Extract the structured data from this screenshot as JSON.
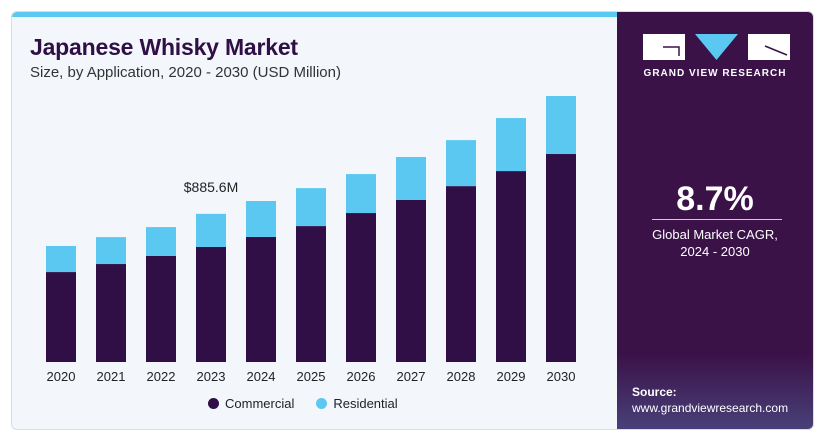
{
  "header": {
    "title": "Japanese Whisky Market",
    "subtitle": "Size, by Application, 2020 - 2030 (USD Million)"
  },
  "panel": {
    "brand": "GRAND VIEW RESEARCH",
    "cagr_value": "8.7%",
    "cagr_label_1": "Global Market CAGR,",
    "cagr_label_2": "2024 - 2030",
    "source_label": "Source:",
    "source_url": "www.grandviewresearch.com"
  },
  "colors": {
    "commercial": "#2f0f45",
    "residential": "#5ac8f0",
    "panel": "#3a1248"
  },
  "chart_data": {
    "type": "bar",
    "stacked": true,
    "title": "Japanese Whisky Market",
    "categories": [
      "2020",
      "2021",
      "2022",
      "2023",
      "2024",
      "2025",
      "2026",
      "2027",
      "2028",
      "2029",
      "2030"
    ],
    "series": [
      {
        "name": "Commercial",
        "values": [
          538,
          586,
          634,
          688,
          748,
          813,
          891,
          969,
          1052,
          1142,
          1244
        ]
      },
      {
        "name": "Residential",
        "values": [
          156,
          161,
          173,
          198,
          215,
          227,
          233,
          257,
          275,
          317,
          347
        ]
      }
    ],
    "annotations": [
      {
        "category": "2023",
        "text": "$885.6M"
      }
    ],
    "ylim": [
      0,
      1600
    ],
    "legend": "bottom",
    "grid": false
  }
}
